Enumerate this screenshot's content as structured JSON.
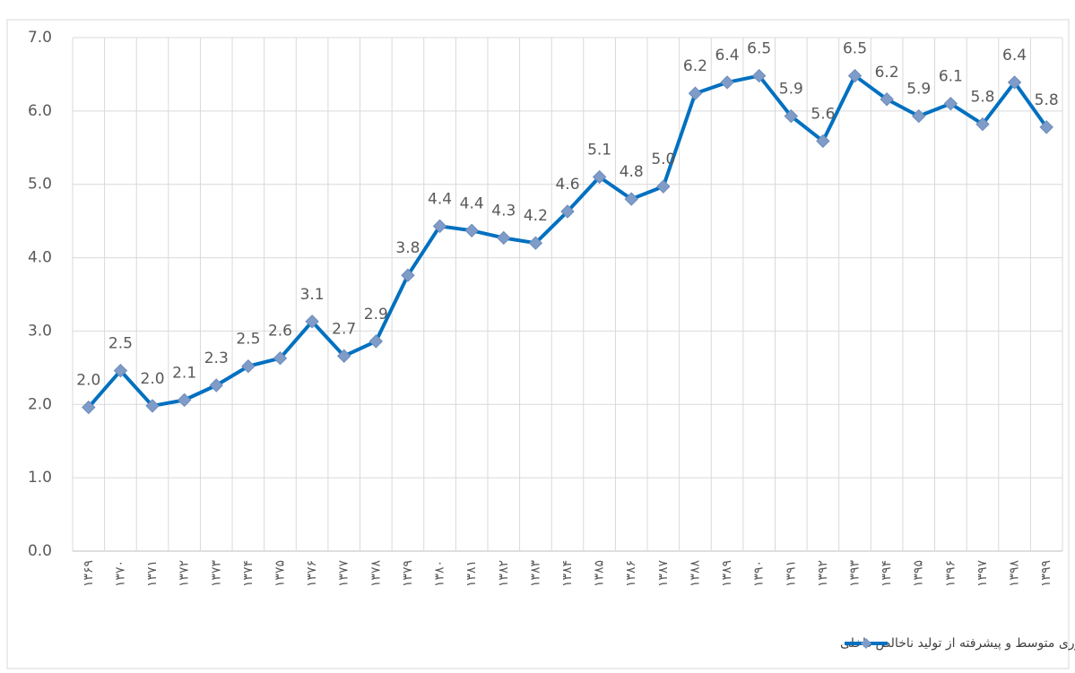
{
  "chart_data": {
    "type": "line",
    "categories": [
      "۱۳۶۹",
      "۱۳۷۰",
      "۱۳۷۱",
      "۱۳۷۲",
      "۱۳۷۳",
      "۱۳۷۴",
      "۱۳۷۵",
      "۱۳۷۶",
      "۱۳۷۷",
      "۱۳۷۸",
      "۱۳۷۹",
      "۱۳۸۰",
      "۱۳۸۱",
      "۱۳۸۲",
      "۱۳۸۳",
      "۱۳۸۴",
      "۱۳۸۵",
      "۱۳۸۶",
      "۱۳۸۷",
      "۱۳۸۸",
      "۱۳۸۹",
      "۱۳۹۰",
      "۱۳۹۱",
      "۱۳۹۲",
      "۱۳۹۳",
      "۱۳۹۴",
      "۱۳۹۵",
      "۱۳۹۶",
      "۱۳۹۷",
      "۱۳۹۸",
      "۱۳۹۹"
    ],
    "series": [
      {
        "name": "سهم ارزش افزوده تولیدات با فناوری متوسط و پیشرفته از تولید ناخالص داخلی",
        "color": "#0070c0",
        "marker_color": "#7f9cc8",
        "values": [
          1.96,
          2.46,
          1.98,
          2.06,
          2.26,
          2.52,
          2.63,
          3.13,
          2.66,
          2.86,
          3.76,
          4.43,
          4.37,
          4.27,
          4.2,
          4.63,
          5.1,
          4.8,
          4.97,
          6.24,
          6.39,
          6.48,
          5.93,
          5.59,
          6.48,
          6.16,
          5.93,
          6.1,
          5.82,
          6.39,
          5.78
        ],
        "value_labels": [
          "2.0",
          "2.5",
          "2.0",
          "2.1",
          "2.3",
          "2.5",
          "2.6",
          "3.1",
          "2.7",
          "2.9",
          "3.8",
          "4.4",
          "4.4",
          "4.3",
          "4.2",
          "4.6",
          "5.1",
          "4.8",
          "5.0",
          "6.2",
          "6.4",
          "6.5",
          "5.9",
          "5.6",
          "6.5",
          "6.2",
          "5.9",
          "6.1",
          "5.8",
          "6.4",
          "5.8"
        ]
      }
    ],
    "ylim": [
      0,
      7
    ],
    "yticks": [
      {
        "value": 0,
        "label": "0.0"
      },
      {
        "value": 1,
        "label": "1.0"
      },
      {
        "value": 2,
        "label": "2.0"
      },
      {
        "value": 3,
        "label": "3.0"
      },
      {
        "value": 4,
        "label": "4.0"
      },
      {
        "value": 5,
        "label": "5.0"
      },
      {
        "value": 6,
        "label": "6.0"
      },
      {
        "value": 7,
        "label": "7.0"
      }
    ],
    "grid": true,
    "legend": "bottom"
  }
}
